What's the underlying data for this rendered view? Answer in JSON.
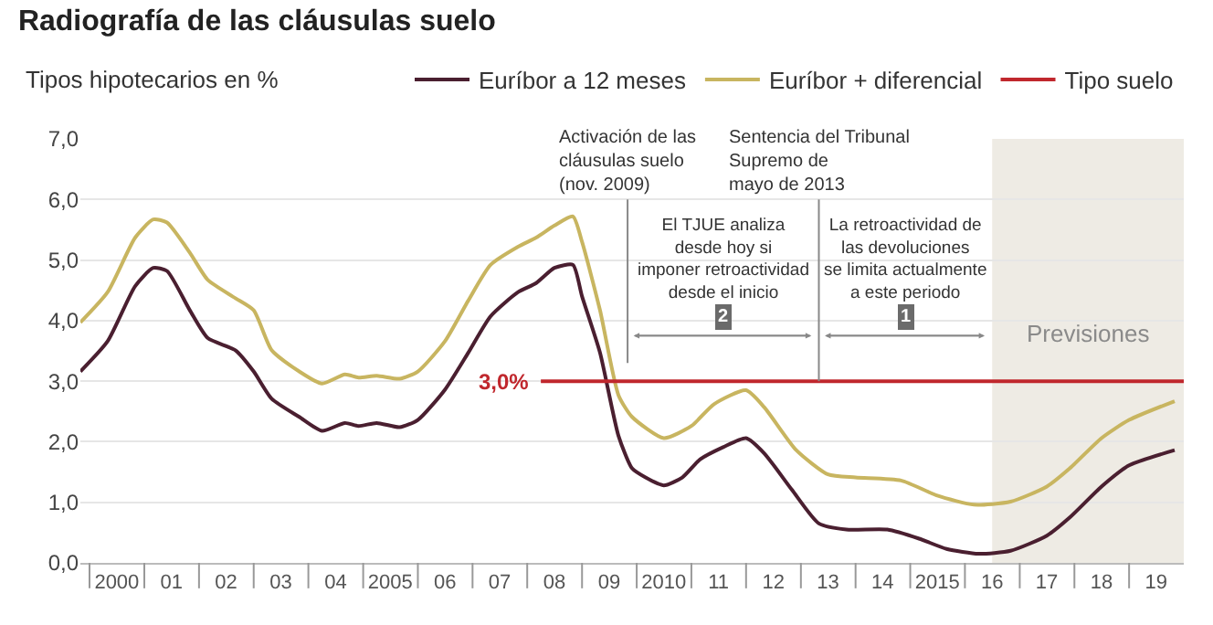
{
  "chart_data": {
    "type": "line",
    "title": "Radiografía de las cláusulas suelo",
    "ylabel": "Tipos hipotecarios en %",
    "legend": "top",
    "grid": "y",
    "marker": "none",
    "line_style": "solid",
    "xlim": [
      "1999-11",
      "2020-01"
    ],
    "ylim": [
      0,
      7
    ],
    "xticks": [
      {
        "value": "2000",
        "label": null
      },
      {
        "value": "2000-07",
        "label": "2000"
      },
      {
        "value": "2001",
        "label": null
      },
      {
        "value": "2001-07",
        "label": "01"
      },
      {
        "value": "2002",
        "label": null
      },
      {
        "value": "2002-07",
        "label": "02"
      },
      {
        "value": "2003",
        "label": null
      },
      {
        "value": "2003-07",
        "label": "03"
      },
      {
        "value": "2004",
        "label": null
      },
      {
        "value": "2004-07",
        "label": "04"
      },
      {
        "value": "2005",
        "label": null
      },
      {
        "value": "2005-07",
        "label": "2005"
      },
      {
        "value": "2006",
        "label": null
      },
      {
        "value": "2006-07",
        "label": "06"
      },
      {
        "value": "2007",
        "label": null
      },
      {
        "value": "2007-07",
        "label": "07"
      },
      {
        "value": "2008",
        "label": null
      },
      {
        "value": "2008-07",
        "label": "08"
      },
      {
        "value": "2009",
        "label": null
      },
      {
        "value": "2009-07",
        "label": "09"
      },
      {
        "value": "2010",
        "label": null
      },
      {
        "value": "2010-07",
        "label": "2010"
      },
      {
        "value": "2011",
        "label": null
      },
      {
        "value": "2011-07",
        "label": "11"
      },
      {
        "value": "2012",
        "label": null
      },
      {
        "value": "2012-07",
        "label": "12"
      },
      {
        "value": "2013",
        "label": null
      },
      {
        "value": "2013-07",
        "label": "13"
      },
      {
        "value": "2014",
        "label": null
      },
      {
        "value": "2014-07",
        "label": "14"
      },
      {
        "value": "2015",
        "label": null
      },
      {
        "value": "2015-07",
        "label": "2015"
      },
      {
        "value": "2016",
        "label": null
      },
      {
        "value": "2016-07",
        "label": "16"
      },
      {
        "value": "2017",
        "label": null
      },
      {
        "value": "2017-07",
        "label": "17"
      },
      {
        "value": "2018",
        "label": null
      },
      {
        "value": "2018-07",
        "label": "18"
      },
      {
        "value": "2019",
        "label": null
      },
      {
        "value": "2019-07",
        "label": "19"
      }
    ],
    "yticks": [
      {
        "value": 0,
        "label": "0,0"
      },
      {
        "value": 1,
        "label": "1,0"
      },
      {
        "value": 2,
        "label": "2,0"
      },
      {
        "value": 3,
        "label": "3,0"
      },
      {
        "value": 4,
        "label": "4,0"
      },
      {
        "value": 5,
        "label": "5,0"
      },
      {
        "value": 6,
        "label": "6,0"
      },
      {
        "value": 7,
        "label": "7,0"
      }
    ],
    "series": [
      {
        "name": "Euríbor a 12 meses",
        "color": "#4a1f30",
        "x": [
          "1999-11",
          "2000-05",
          "2000-11",
          "2001-03",
          "2001-06",
          "2001-11",
          "2002-03",
          "2002-09",
          "2003-01",
          "2003-05",
          "2003-11",
          "2004-04",
          "2004-09",
          "2004-12",
          "2005-04",
          "2005-09",
          "2006-01",
          "2006-07",
          "2006-12",
          "2007-05",
          "2007-11",
          "2008-03",
          "2008-07",
          "2008-11",
          "2009-01",
          "2009-05",
          "2009-09",
          "2009-12",
          "2010-03",
          "2010-07",
          "2010-11",
          "2011-03",
          "2011-08",
          "2012-01",
          "2012-05",
          "2012-11",
          "2013-05",
          "2013-11",
          "2014-08",
          "2015-03",
          "2015-09",
          "2016-04",
          "2016-11",
          "2017-07",
          "2017-12",
          "2018-07",
          "2019-01",
          "2019-11"
        ],
        "values": [
          3.16,
          3.66,
          4.57,
          4.87,
          4.82,
          4.17,
          3.71,
          3.51,
          3.16,
          2.71,
          2.41,
          2.18,
          2.31,
          2.26,
          2.31,
          2.24,
          2.36,
          2.86,
          3.46,
          4.07,
          4.47,
          4.62,
          4.87,
          4.92,
          4.4,
          3.47,
          2.1,
          1.56,
          1.41,
          1.28,
          1.41,
          1.71,
          1.91,
          2.06,
          1.81,
          1.21,
          0.65,
          0.55,
          0.55,
          0.4,
          0.23,
          0.15,
          0.2,
          0.45,
          0.75,
          1.26,
          1.61,
          1.86
        ]
      },
      {
        "name": "Euríbor + diferencial",
        "color": "#c8b560",
        "x": [
          "1999-11",
          "2000-05",
          "2000-11",
          "2001-03",
          "2001-06",
          "2001-11",
          "2002-03",
          "2002-09",
          "2003-01",
          "2003-05",
          "2003-11",
          "2004-04",
          "2004-09",
          "2004-12",
          "2005-04",
          "2005-09",
          "2006-01",
          "2006-07",
          "2006-12",
          "2007-05",
          "2007-11",
          "2008-03",
          "2008-07",
          "2008-11",
          "2009-01",
          "2009-05",
          "2009-09",
          "2009-12",
          "2010-07",
          "2011-01",
          "2011-06",
          "2012-01",
          "2012-05",
          "2012-12",
          "2013-07",
          "2014-01",
          "2014-11",
          "2015-07",
          "2016-03",
          "2016-11",
          "2017-07",
          "2017-12",
          "2018-07",
          "2019-01",
          "2019-11"
        ],
        "values": [
          3.97,
          4.47,
          5.37,
          5.67,
          5.62,
          5.12,
          4.67,
          4.37,
          4.17,
          3.51,
          3.16,
          2.96,
          3.11,
          3.06,
          3.09,
          3.04,
          3.16,
          3.66,
          4.32,
          4.92,
          5.22,
          5.37,
          5.57,
          5.72,
          5.3,
          4.17,
          2.77,
          2.41,
          2.06,
          2.26,
          2.62,
          2.85,
          2.57,
          1.86,
          1.46,
          1.41,
          1.36,
          1.11,
          0.96,
          1.01,
          1.26,
          1.56,
          2.06,
          2.36,
          2.67
        ]
      },
      {
        "name": "Tipo suelo",
        "color": "#c0272d",
        "x": [
          "2008-04",
          "2020-01"
        ],
        "values": [
          3,
          3
        ]
      }
    ],
    "bands": [
      {
        "axis": "x",
        "from": "2016-07",
        "to": "2020-01",
        "label": "Previsiones",
        "color": "#eeebe4"
      }
    ],
    "ref_lines": [
      {
        "axis": "x",
        "value": "2009-11",
        "label": "Activación de las\ncláusulas suelo\n(nov. 2009)"
      },
      {
        "axis": "x",
        "value": "2013-05",
        "label": "Sentencia del Tribunal\nSupremo de\nmayo de 2013"
      }
    ],
    "annotations": [
      "El TJUE analiza\ndesde hoy si\nimponer retroactividad\ndesde el inicio",
      "2",
      "La retroactividad de\nlas devoluciones\nse limita actualmente\na este periodo",
      "1",
      {
        "text": "3,0%",
        "x": "2008-04",
        "y": 3.0
      }
    ]
  }
}
